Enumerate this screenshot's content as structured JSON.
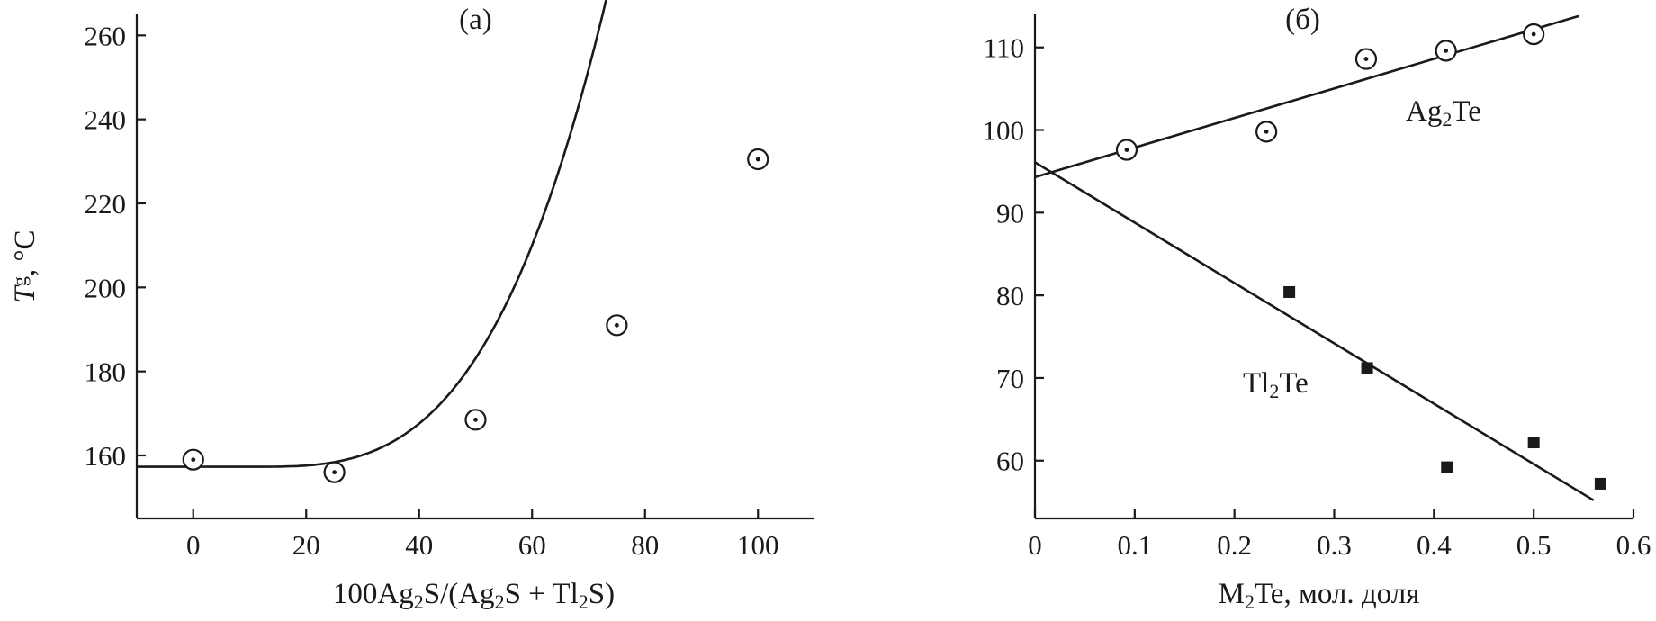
{
  "chart_data": [
    {
      "type": "scatter",
      "panel_label": "(а)",
      "xlabel_parts": [
        "100Ag",
        "2",
        "S/(Ag",
        "2",
        "S + Tl",
        "2",
        "S)"
      ],
      "ylabel_parts": [
        "T",
        "g",
        ", °C"
      ],
      "xlim": [
        -10,
        110
      ],
      "ylim": [
        145,
        265
      ],
      "x_ticks": [
        0,
        20,
        40,
        60,
        80,
        100
      ],
      "y_ticks": [
        160,
        180,
        200,
        220,
        240,
        260
      ],
      "series": [
        {
          "marker": "circle-dot",
          "x": [
            0,
            25,
            50,
            75,
            100
          ],
          "y": [
            159,
            156,
            168.5,
            191,
            230.5
          ]
        }
      ],
      "fit": {
        "kind": "power",
        "base": 157.3,
        "x0": 10,
        "amplitude": 0.000193,
        "exponent": 3.2,
        "x_range": [
          -10,
          110
        ]
      }
    },
    {
      "type": "scatter",
      "panel_label": "(б)",
      "xlabel_parts": [
        "M",
        "2",
        "Te, мол. доля"
      ],
      "xlim": [
        0,
        0.6
      ],
      "ylim": [
        53,
        114
      ],
      "x_ticks": [
        0,
        0.1,
        0.2,
        0.3,
        0.4,
        0.5,
        0.6
      ],
      "x_tick_labels": [
        "0",
        "0.1",
        "0.2",
        "0.3",
        "0.4",
        "0.5",
        "0.6"
      ],
      "y_ticks": [
        60,
        70,
        80,
        90,
        100,
        110
      ],
      "series": [
        {
          "label_parts": [
            "Ag",
            "2",
            "Te"
          ],
          "marker": "circle-dot",
          "x": [
            0.092,
            0.232,
            0.332,
            0.412,
            0.5
          ],
          "y": [
            97.6,
            99.8,
            108.6,
            109.6,
            111.6
          ],
          "fit": {
            "x": [
              0,
              0.545
            ],
            "y": [
              94.3,
              113.8
            ]
          }
        },
        {
          "label_parts": [
            "Tl",
            "2",
            "Te"
          ],
          "marker": "square",
          "x": [
            0.255,
            0.333,
            0.413,
            0.5,
            0.567
          ],
          "y": [
            80.4,
            71.2,
            59.2,
            62.2,
            57.2
          ],
          "fit": {
            "x": [
              0,
              0.56
            ],
            "y": [
              96.1,
              55.2
            ]
          }
        }
      ]
    }
  ]
}
